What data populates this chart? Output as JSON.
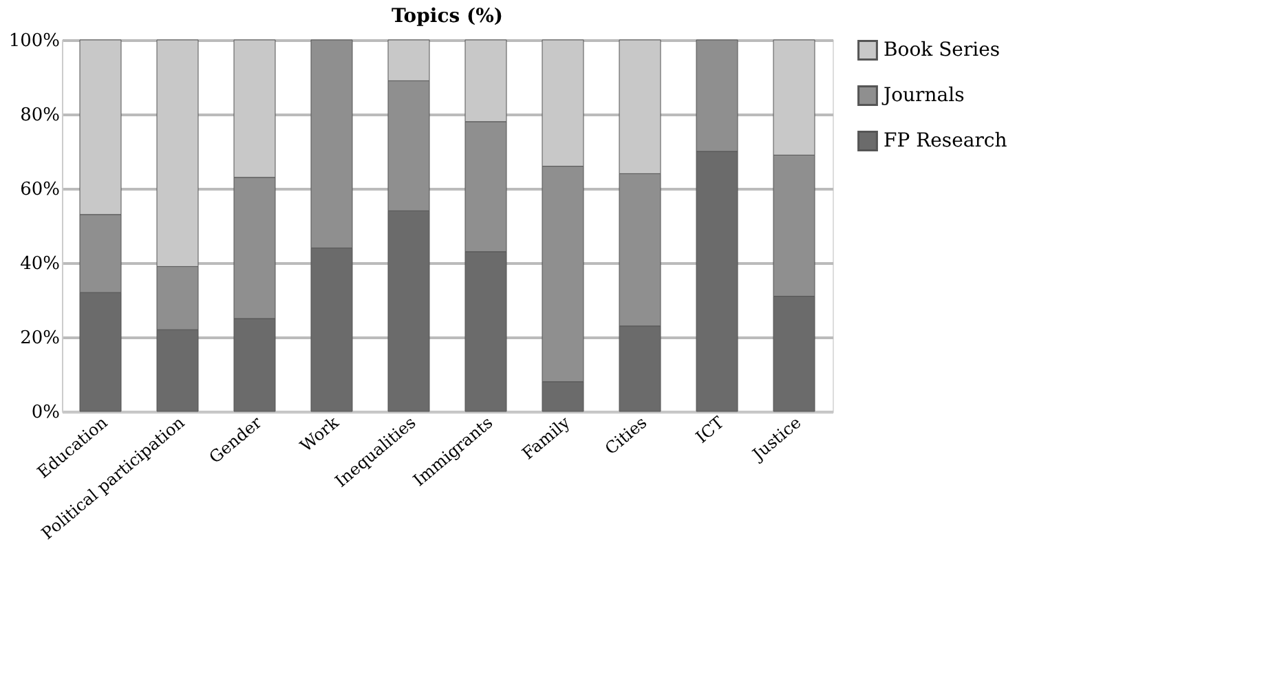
{
  "chart_data": {
    "type": "bar",
    "title": "Topics (%)",
    "stacked": true,
    "categories": [
      "Education",
      "Political participation",
      "Gender",
      "Work",
      "Inequalities",
      "Immigrants",
      "Family",
      "Cities",
      "ICT",
      "Justice"
    ],
    "series": [
      {
        "name": "FP Research",
        "color": "#6b6b6b",
        "values": [
          32,
          22,
          25,
          44,
          54,
          43,
          8,
          23,
          70,
          31
        ]
      },
      {
        "name": "Journals",
        "color": "#8f8f8f",
        "values": [
          21,
          17,
          38,
          56,
          35,
          35,
          58,
          41,
          30,
          38
        ]
      },
      {
        "name": "Book Series",
        "color": "#c8c8c8",
        "values": [
          47,
          61,
          37,
          null,
          11,
          22,
          34,
          36,
          null,
          31
        ]
      }
    ],
    "ylim": [
      0,
      100
    ],
    "yticks": [
      {
        "value": 0,
        "label": "0%"
      },
      {
        "value": 20,
        "label": "20%"
      },
      {
        "value": 40,
        "label": "40%"
      },
      {
        "value": 60,
        "label": "60%"
      },
      {
        "value": 80,
        "label": "80%"
      },
      {
        "value": 100,
        "label": "100%"
      }
    ],
    "grid": "y",
    "legend": "right"
  }
}
